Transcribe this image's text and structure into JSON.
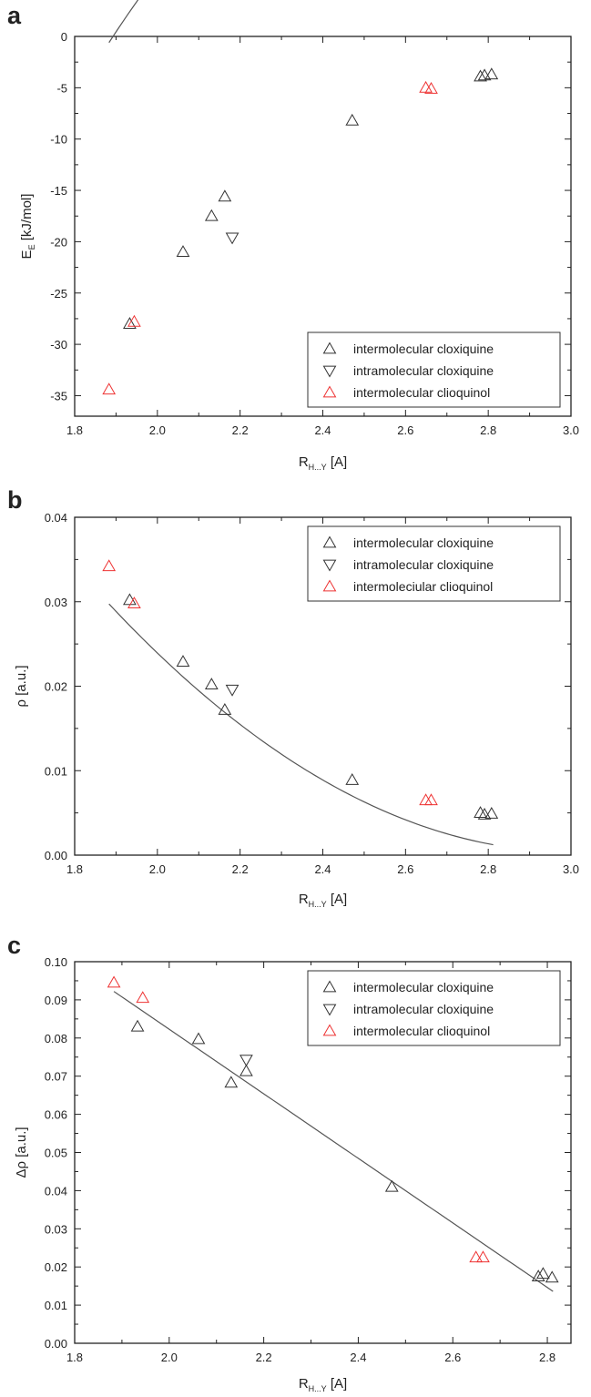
{
  "figure": {
    "panels": [
      "a",
      "b",
      "c"
    ]
  },
  "chart_data": [
    {
      "type": "scatter",
      "panel": "a",
      "ylabel": "E",
      "ylabel_sub": "E",
      "ylabel_unit": " [kJ/mol]",
      "xlabel": "R",
      "xlabel_sub": "H...Y",
      "xlabel_unit": " [A]",
      "xlim": [
        1.8,
        3.0
      ],
      "ylim": [
        -37,
        0
      ],
      "xticks": [
        1.8,
        2.0,
        2.2,
        2.4,
        2.6,
        2.8,
        3.0
      ],
      "xtick_labels": [
        "1.8",
        "2.0",
        "2.2",
        "2.4",
        "2.6",
        "2.8",
        "3.0"
      ],
      "yticks": [
        0,
        -5,
        -10,
        -15,
        -20,
        -25,
        -30,
        -35
      ],
      "ytick_labels": [
        "0",
        "-5",
        "-10",
        "-15",
        "-20",
        "-25",
        "-30",
        "-35"
      ],
      "legend_position": "bottom-right",
      "grid": false,
      "series": [
        {
          "name": "intermolecular cloxiquine",
          "marker": "triangle-up",
          "color": "#333333",
          "x": [
            1.933,
            2.062,
            2.131,
            2.163,
            2.471,
            2.781,
            2.791,
            2.808
          ],
          "y": [
            -28.0,
            -21.0,
            -17.5,
            -15.6,
            -8.2,
            -3.9,
            -3.8,
            -3.7
          ]
        },
        {
          "name": "intramolecular cloxiquine",
          "marker": "triangle-down",
          "color": "#333333",
          "x": [
            2.181
          ],
          "y": [
            -19.6
          ]
        },
        {
          "name": "intermolecular clioquinol",
          "marker": "triangle-up",
          "color": "#ee3333",
          "x": [
            1.883,
            1.944,
            2.649,
            2.662
          ],
          "y": [
            -34.4,
            -27.8,
            -5.0,
            -5.1
          ]
        }
      ],
      "fit": {
        "kind": "quadratic",
        "x_range": [
          1.883,
          2.812
        ],
        "coefficients": [
          -249.14,
          202.04,
          -37.2
        ],
        "color": "#555555"
      }
    },
    {
      "type": "scatter",
      "panel": "b",
      "ylabel": "ρ",
      "ylabel_sub": "",
      "ylabel_unit": " [a.u.]",
      "xlabel": "R",
      "xlabel_sub": "H...Y",
      "xlabel_unit": " [A]",
      "xlim": [
        1.8,
        3.0
      ],
      "ylim": [
        0.0,
        0.04
      ],
      "xticks": [
        1.8,
        2.0,
        2.2,
        2.4,
        2.6,
        2.8,
        3.0
      ],
      "xtick_labels": [
        "1.8",
        "2.0",
        "2.2",
        "2.4",
        "2.6",
        "2.8",
        "3.0"
      ],
      "yticks": [
        0.0,
        0.01,
        0.02,
        0.03,
        0.04
      ],
      "ytick_labels": [
        "0.00",
        "0.01",
        "0.02",
        "0.03",
        "0.04"
      ],
      "legend_position": "top-right",
      "grid": false,
      "series": [
        {
          "name": "intermolecular cloxiquine",
          "marker": "triangle-up",
          "color": "#333333",
          "x": [
            1.933,
            2.062,
            2.131,
            2.163,
            2.471,
            2.781,
            2.791,
            2.808
          ],
          "y": [
            0.0302,
            0.0229,
            0.0202,
            0.0172,
            0.0089,
            0.005,
            0.0048,
            0.0049
          ]
        },
        {
          "name": "intramolecular cloxiquine",
          "marker": "triangle-down",
          "color": "#333333",
          "x": [
            2.181
          ],
          "y": [
            0.0196
          ]
        },
        {
          "name": "intermoleciular clioquinol",
          "marker": "triangle-up",
          "color": "#ee3333",
          "x": [
            1.883,
            1.944,
            2.649,
            2.662
          ],
          "y": [
            0.0342,
            0.0298,
            0.0065,
            0.0065
          ]
        }
      ],
      "fit": {
        "kind": "quadratic",
        "x_range": [
          1.883,
          2.812
        ],
        "coefficients": [
          0.21136,
          -0.14049,
          0.023387
        ],
        "color": "#555555"
      }
    },
    {
      "type": "scatter",
      "panel": "c",
      "ylabel": "Δρ",
      "ylabel_sub": "",
      "ylabel_unit": " [a.u.]",
      "xlabel": "R",
      "xlabel_sub": "H...Y",
      "xlabel_unit": " [A]",
      "xlim": [
        1.8,
        2.85
      ],
      "ylim": [
        0.0,
        0.1
      ],
      "xticks": [
        1.8,
        2.0,
        2.2,
        2.4,
        2.6,
        2.8
      ],
      "xtick_labels": [
        "1.8",
        "2.0",
        "2.2",
        "2.4",
        "2.6",
        "2.8"
      ],
      "yticks": [
        0.0,
        0.01,
        0.02,
        0.03,
        0.04,
        0.05,
        0.06,
        0.07,
        0.08,
        0.09,
        0.1
      ],
      "ytick_labels": [
        "0.00",
        "0.01",
        "0.02",
        "0.03",
        "0.04",
        "0.05",
        "0.06",
        "0.07",
        "0.08",
        "0.09",
        "0.10"
      ],
      "legend_position": "top-right",
      "grid": false,
      "series": [
        {
          "name": "intermolecular cloxiquine",
          "marker": "triangle-up",
          "color": "#333333",
          "x": [
            1.933,
            2.062,
            2.131,
            2.163,
            2.471,
            2.781,
            2.791,
            2.81
          ],
          "y": [
            0.083,
            0.0797,
            0.0683,
            0.0713,
            0.041,
            0.0175,
            0.0182,
            0.0172
          ]
        },
        {
          "name": "intramolecular cloxiquine",
          "marker": "triangle-down",
          "color": "#333333",
          "x": [
            2.163
          ],
          "y": [
            0.0743
          ]
        },
        {
          "name": "intermolecular clioquinol",
          "marker": "triangle-up",
          "color": "#ee3333",
          "x": [
            1.883,
            1.944,
            2.649,
            2.664
          ],
          "y": [
            0.0945,
            0.0905,
            0.0225,
            0.0225
          ]
        }
      ],
      "fit": {
        "kind": "linear",
        "x_range": [
          1.883,
          2.812
        ],
        "coefficients": [
          0.2515,
          -0.0846
        ],
        "color": "#555555"
      }
    }
  ]
}
